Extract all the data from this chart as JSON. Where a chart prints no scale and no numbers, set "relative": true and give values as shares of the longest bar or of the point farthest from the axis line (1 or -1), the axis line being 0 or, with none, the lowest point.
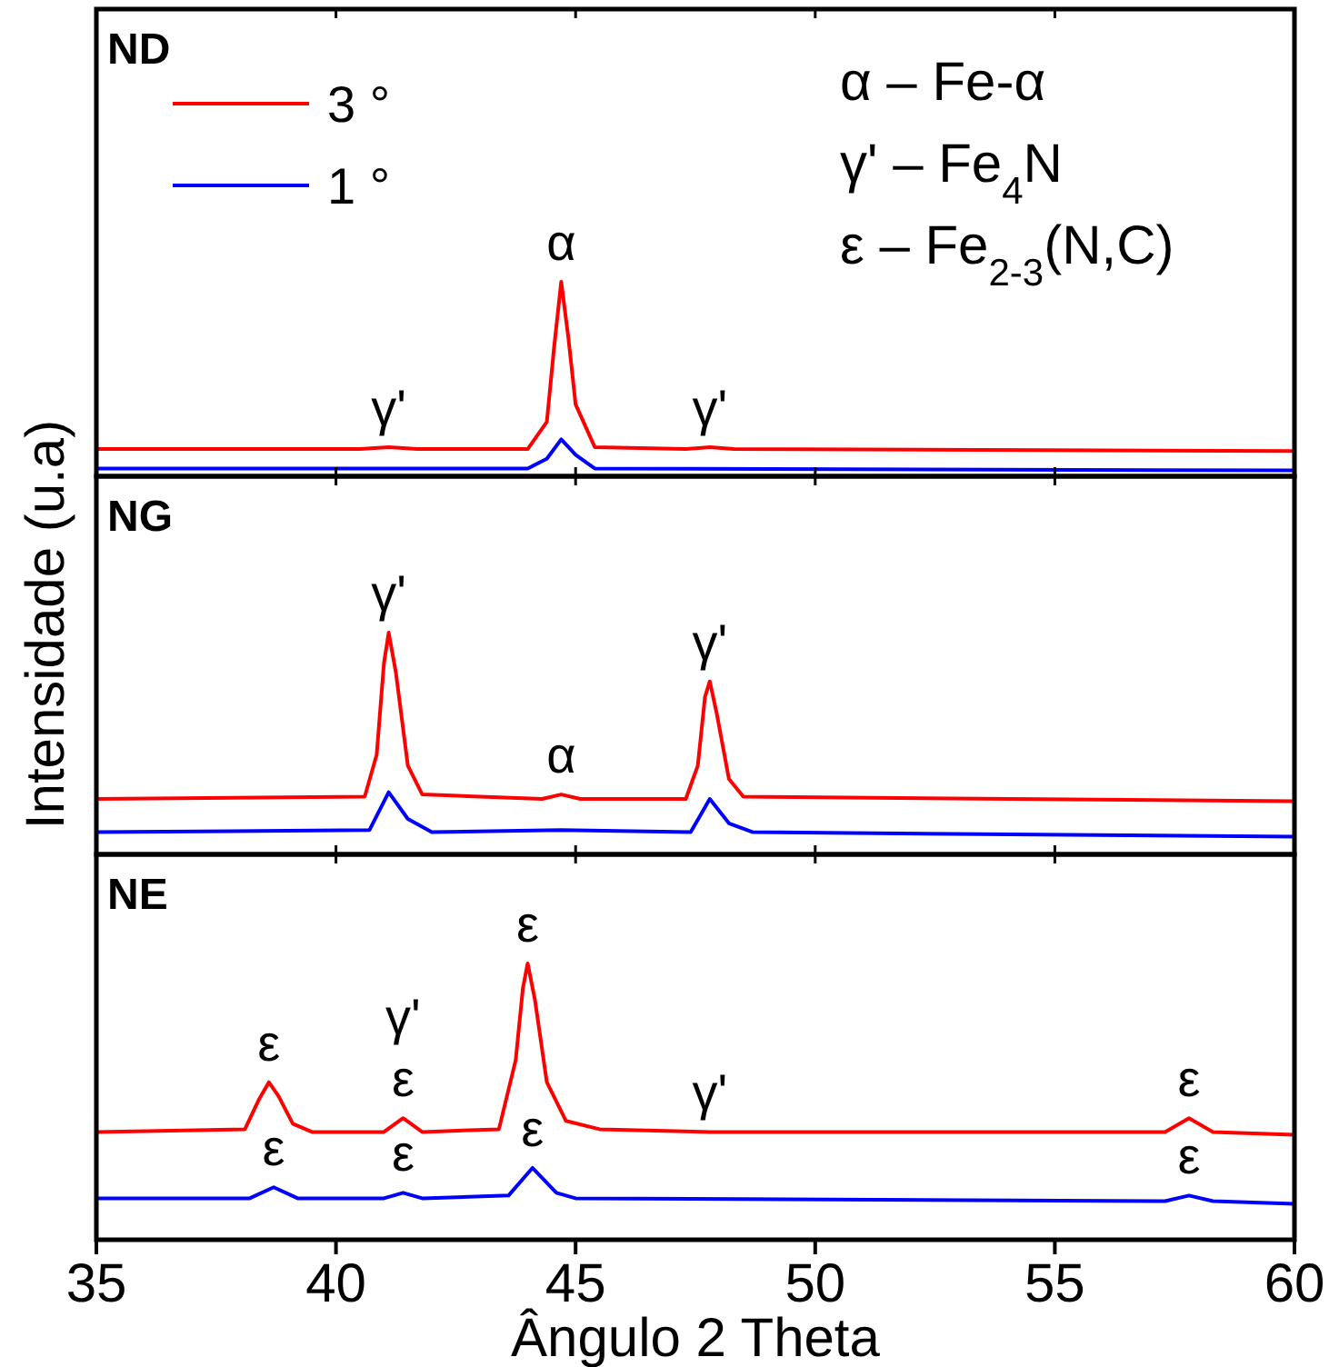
{
  "chart_data": [
    {
      "type": "line",
      "title": "ND",
      "relative": true,
      "xlim": [
        35,
        60
      ],
      "xticks": [
        35,
        40,
        45,
        50,
        55,
        60
      ],
      "tick_labels": false,
      "legend": "top left",
      "series": [
        {
          "name": "3 °",
          "color": "#ff0000",
          "x": [
            35,
            40.5,
            41.1,
            41.7,
            44.0,
            44.4,
            44.55,
            44.7,
            44.85,
            45.0,
            45.4,
            47.3,
            47.8,
            48.3,
            60
          ],
          "values": [
            0.14,
            0.14,
            0.15,
            0.14,
            0.14,
            0.28,
            0.66,
            1.0,
            0.71,
            0.37,
            0.15,
            0.14,
            0.15,
            0.14,
            0.13
          ]
        },
        {
          "name": "1 °",
          "color": "#0000ff",
          "x": [
            35,
            44.0,
            44.4,
            44.7,
            45.0,
            45.4,
            60
          ],
          "values": [
            0.04,
            0.04,
            0.09,
            0.19,
            0.11,
            0.04,
            0.03
          ]
        }
      ],
      "annotations": [
        {
          "text": "α",
          "x": 44.7,
          "y": 1.0
        },
        {
          "text": "γ'",
          "x": 41.1,
          "y": 0.15
        },
        {
          "text": "γ'",
          "x": 47.8,
          "y": 0.15
        },
        "α – Fe-α",
        "γ' – Fe$_{4}$N",
        "ε  – Fe$_{2-3}$(N,C)"
      ]
    },
    {
      "type": "line",
      "title": "NG",
      "relative": true,
      "xlim": [
        35,
        60
      ],
      "xticks": [
        35,
        40,
        45,
        50,
        55,
        60
      ],
      "tick_labels": false,
      "ylabel": "Intensidade (u.a)",
      "series": [
        {
          "color": "#ff0000",
          "x": [
            35,
            40.6,
            40.85,
            41.0,
            41.1,
            41.25,
            41.5,
            41.8,
            44.3,
            44.7,
            45.1,
            47.3,
            47.55,
            47.7,
            47.8,
            47.95,
            48.2,
            48.5,
            60
          ],
          "values": [
            0.25,
            0.26,
            0.45,
            0.86,
            1.0,
            0.82,
            0.4,
            0.27,
            0.25,
            0.27,
            0.25,
            0.25,
            0.4,
            0.71,
            0.78,
            0.63,
            0.34,
            0.26,
            0.24
          ]
        },
        {
          "color": "#0000ff",
          "x": [
            35,
            40.7,
            41.1,
            41.5,
            42.0,
            44.7,
            47.4,
            47.8,
            48.2,
            48.7,
            60
          ],
          "values": [
            0.1,
            0.11,
            0.28,
            0.16,
            0.1,
            0.11,
            0.1,
            0.25,
            0.14,
            0.1,
            0.08
          ]
        }
      ],
      "annotations": [
        {
          "text": "γ'",
          "x": 41.1,
          "y": 1.0
        },
        {
          "text": "α",
          "x": 44.7,
          "y": 0.27
        },
        {
          "text": "γ'",
          "x": 47.8,
          "y": 0.78
        }
      ]
    },
    {
      "type": "line",
      "title": "NE",
      "relative": true,
      "xlim": [
        35,
        60
      ],
      "xticks": [
        35,
        40,
        45,
        50,
        55,
        60
      ],
      "tick_labels": "x",
      "xlabel": "Ângulo 2 Theta",
      "series": [
        {
          "color": "#ff0000",
          "x": [
            35,
            38.1,
            38.4,
            38.6,
            38.8,
            39.1,
            39.5,
            41.0,
            41.4,
            41.8,
            43.4,
            43.75,
            43.9,
            44.0,
            44.15,
            44.4,
            44.8,
            45.5,
            47.8,
            57.3,
            57.8,
            58.3,
            60
          ],
          "values": [
            0.39,
            0.4,
            0.51,
            0.57,
            0.52,
            0.42,
            0.39,
            0.39,
            0.44,
            0.39,
            0.4,
            0.65,
            0.91,
            1.0,
            0.87,
            0.57,
            0.43,
            0.4,
            0.39,
            0.39,
            0.44,
            0.39,
            0.38
          ]
        },
        {
          "color": "#0000ff",
          "x": [
            35,
            38.2,
            38.7,
            39.2,
            41.0,
            41.4,
            41.8,
            43.6,
            44.1,
            44.6,
            45.0,
            57.3,
            57.8,
            58.3,
            60
          ],
          "values": [
            0.15,
            0.15,
            0.19,
            0.15,
            0.15,
            0.17,
            0.15,
            0.16,
            0.26,
            0.17,
            0.15,
            0.14,
            0.16,
            0.14,
            0.13
          ]
        }
      ],
      "annotations": [
        {
          "text": "ε",
          "x": 38.6,
          "y": 0.57
        },
        {
          "text": "ε",
          "x": 41.4,
          "y": 0.44
        },
        {
          "text": "γ'",
          "x": 41.4,
          "y": 0.44
        },
        {
          "text": "ε",
          "x": 44.0,
          "y": 1.0
        },
        {
          "text": "γ'",
          "x": 47.8,
          "y": 0.39
        },
        {
          "text": "ε",
          "x": 57.8,
          "y": 0.44
        },
        {
          "text": "ε",
          "x": 38.7,
          "y": 0.19
        },
        {
          "text": "ε",
          "x": 41.4,
          "y": 0.17
        },
        {
          "text": "ε",
          "x": 44.1,
          "y": 0.26
        },
        {
          "text": "ε",
          "x": 57.8,
          "y": 0.16
        }
      ]
    }
  ]
}
